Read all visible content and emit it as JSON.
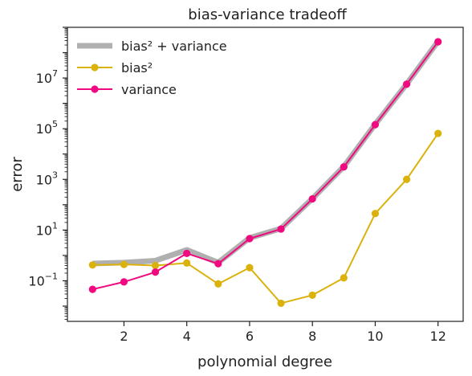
{
  "chart_data": {
    "type": "line",
    "title": "bias-variance tradeoff",
    "xlabel": "polynomial degree",
    "ylabel": "error",
    "yscale": "log",
    "x": [
      1,
      2,
      3,
      4,
      5,
      6,
      7,
      8,
      9,
      10,
      11,
      12
    ],
    "xlim": [
      0.2,
      12.8
    ],
    "ylim": [
      0.0025,
      1000000000
    ],
    "xticks": [
      2,
      4,
      6,
      8,
      10,
      12
    ],
    "xtick_labels": [
      "2",
      "4",
      "6",
      "8",
      "10",
      "12"
    ],
    "yticks": [
      0.1,
      10,
      1000,
      100000,
      10000000
    ],
    "ytick_bases": [
      "10",
      "10",
      "10",
      "10",
      "10"
    ],
    "ytick_exponents": [
      "−1",
      "1",
      "3",
      "5",
      "7"
    ],
    "grid": false,
    "legend_position": "top-left",
    "series": [
      {
        "name": "bias² + variance",
        "color": "#b0b0b0",
        "marker": false,
        "values": [
          0.48,
          0.52,
          0.62,
          1.65,
          0.52,
          4.9,
          11.5,
          175,
          3200,
          150000,
          5800000,
          280000000
        ]
      },
      {
        "name": "bias²",
        "color": "#dbb20c",
        "marker": true,
        "values": [
          0.42,
          0.44,
          0.4,
          0.5,
          0.075,
          0.33,
          0.013,
          0.027,
          0.13,
          45,
          1000,
          65000
        ]
      },
      {
        "name": "variance",
        "color": "#f0097f",
        "marker": true,
        "values": [
          0.046,
          0.09,
          0.22,
          1.2,
          0.47,
          4.6,
          11,
          170,
          3100,
          145000,
          5700000,
          270000000
        ]
      }
    ]
  }
}
